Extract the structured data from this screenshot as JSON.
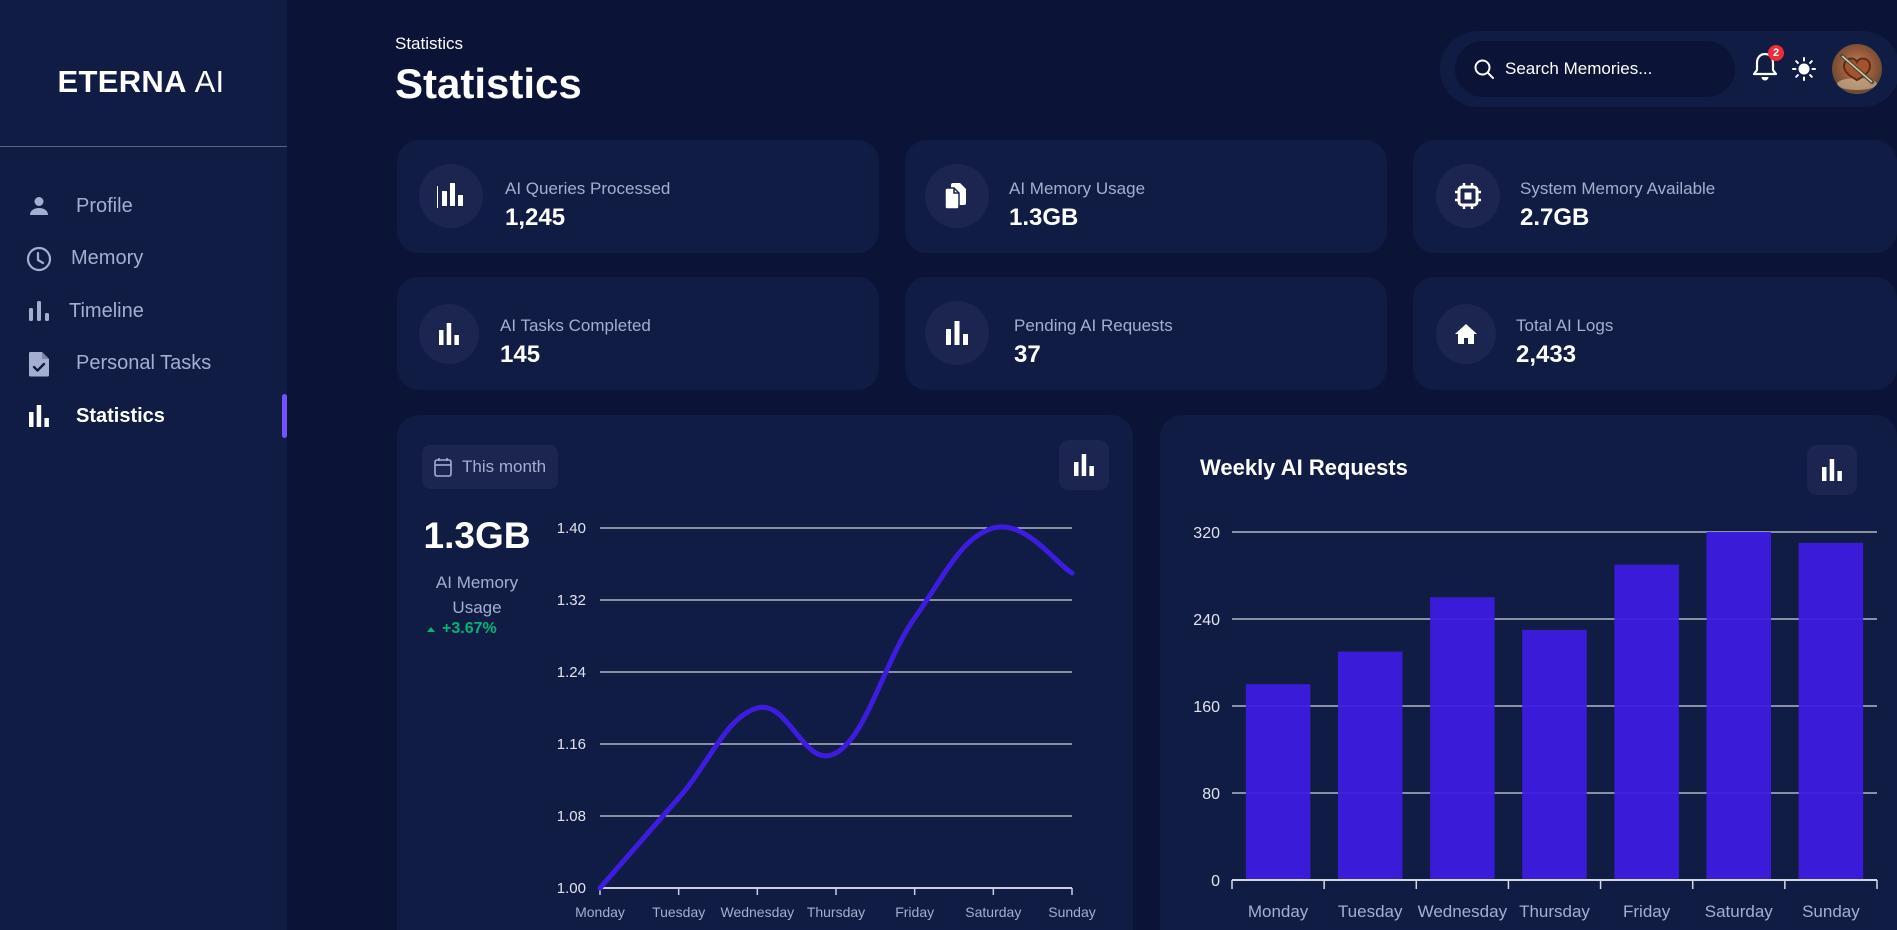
{
  "brand": {
    "name_bold": "ETERNA",
    "name_thin": "AI"
  },
  "sidebar": {
    "items": [
      {
        "label": "Profile",
        "icon": "person-icon",
        "active": false
      },
      {
        "label": "Memory",
        "icon": "clock-icon",
        "active": false
      },
      {
        "label": "Timeline",
        "icon": "bar-chart-icon",
        "active": false
      },
      {
        "label": "Personal Tasks",
        "icon": "task-document-icon",
        "active": false
      },
      {
        "label": "Statistics",
        "icon": "bar-chart-icon",
        "active": true
      }
    ]
  },
  "header": {
    "breadcrumb": "Statistics",
    "title": "Statistics",
    "search_placeholder": "Search Memories...",
    "notification_count": "2"
  },
  "stats": [
    {
      "label": "AI Queries Processed",
      "value": "1,245",
      "icon": "bar-chart-icon"
    },
    {
      "label": "AI Memory Usage",
      "value": "1.3GB",
      "icon": "copy-files-icon"
    },
    {
      "label": "System Memory Available",
      "value": "2.7GB",
      "icon": "cpu-chip-icon"
    },
    {
      "label": "AI Tasks Completed",
      "value": "145",
      "icon": "bar-chart-icon"
    },
    {
      "label": "Pending AI Requests",
      "value": "37",
      "icon": "bar-chart-icon"
    },
    {
      "label": "Total AI Logs",
      "value": "2,433",
      "icon": "home-icon"
    }
  ],
  "memory_card": {
    "period_label": "This month",
    "value": "1.3GB",
    "label": "AI Memory Usage",
    "delta": "+3.67%"
  },
  "weekly_card": {
    "title": "Weekly AI Requests"
  },
  "colors": {
    "accent": "#3d1ce0",
    "positive": "#01b574",
    "active_indicator": "#7551ff"
  },
  "chart_data": [
    {
      "type": "line",
      "title": "AI Memory Usage",
      "categories": [
        "Monday",
        "Tuesday",
        "Wednesday",
        "Thursday",
        "Friday",
        "Saturday",
        "Sunday"
      ],
      "values": [
        1.0,
        1.1,
        1.2,
        1.15,
        1.3,
        1.4,
        1.35
      ],
      "yticks": [
        "1.00",
        "1.08",
        "1.16",
        "1.24",
        "1.32",
        "1.40"
      ],
      "ylim": [
        1.0,
        1.4
      ],
      "xlabel": "",
      "ylabel": "",
      "grid": true,
      "smooth": true
    },
    {
      "type": "bar",
      "title": "Weekly AI Requests",
      "categories": [
        "Monday",
        "Tuesday",
        "Wednesday",
        "Thursday",
        "Friday",
        "Saturday",
        "Sunday"
      ],
      "values": [
        180,
        210,
        260,
        230,
        290,
        320,
        310
      ],
      "yticks": [
        "0",
        "80",
        "160",
        "240",
        "320"
      ],
      "ylim": [
        0,
        320
      ],
      "xlabel": "",
      "ylabel": "",
      "grid": true
    }
  ]
}
